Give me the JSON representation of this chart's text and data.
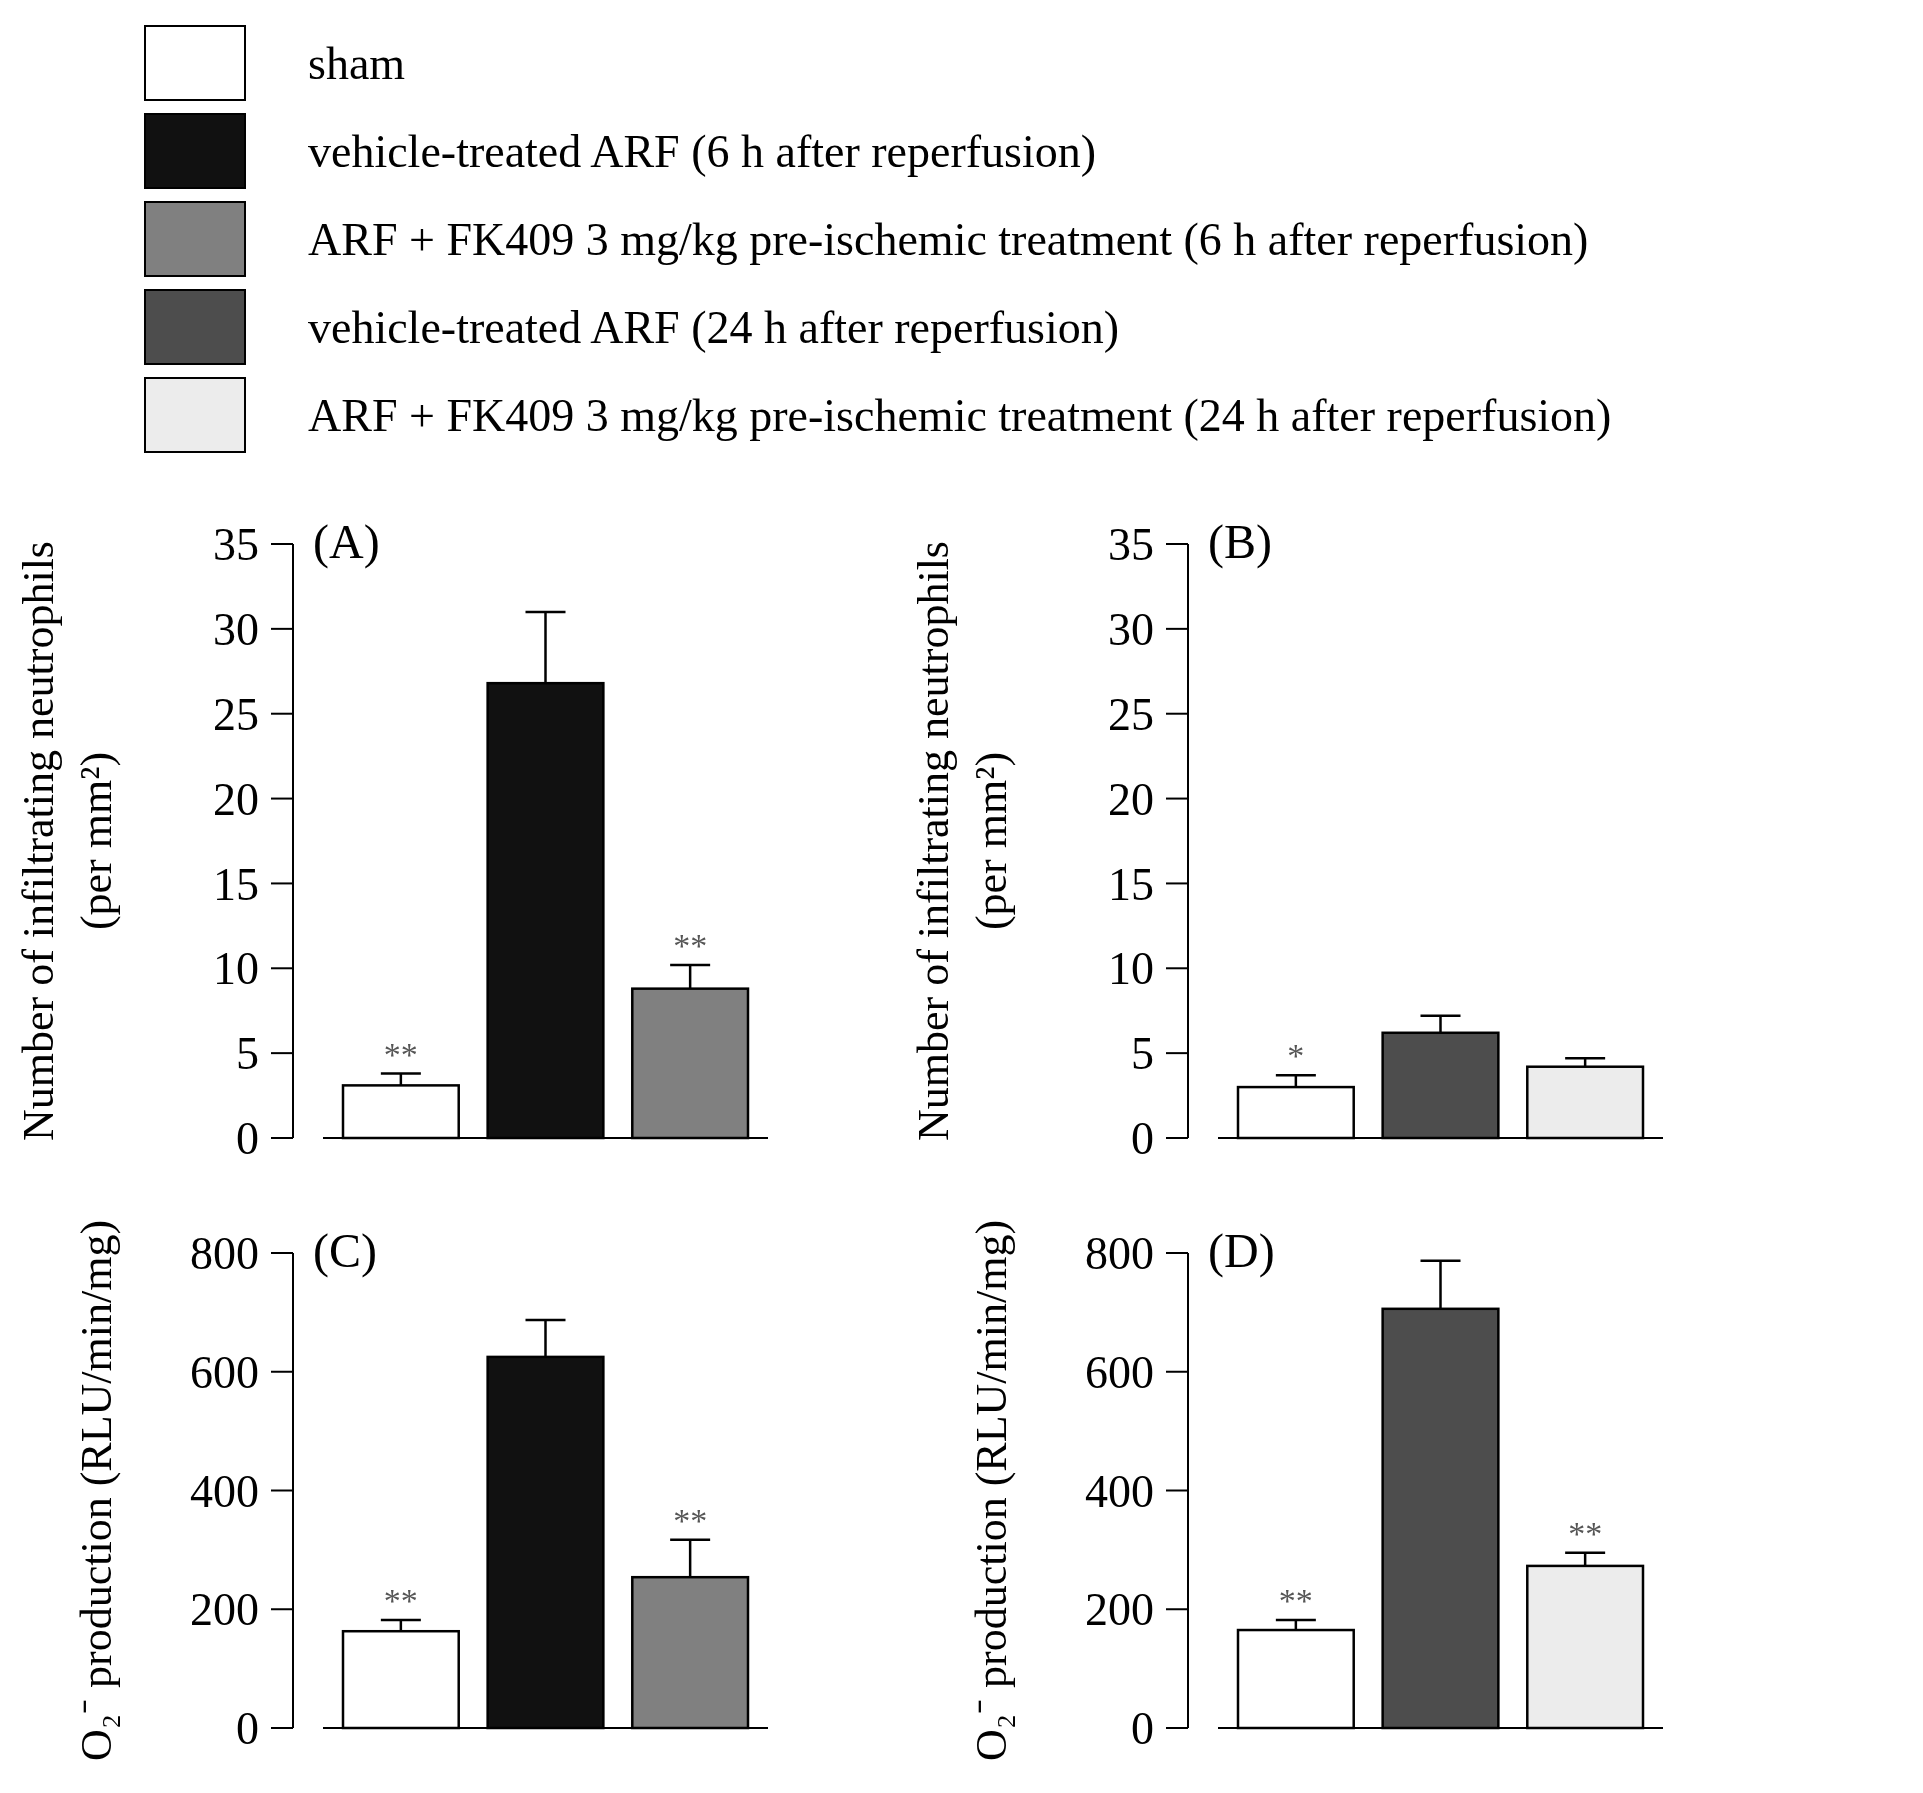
{
  "chart_data": [
    {
      "type": "bar",
      "title": "(A)",
      "ylabel": "Number of infiltrating neutrophils (per mm²)",
      "categories": [
        null
      ],
      "ylim": [
        0,
        35
      ],
      "yticks": [
        0,
        5,
        10,
        15,
        20,
        25,
        30,
        35
      ],
      "legend": "top",
      "series": [
        {
          "name": "sham",
          "color": "#ffffff",
          "values": [
            3.1
          ],
          "errors": [
            0.7
          ],
          "value_labels": [
            "**"
          ]
        },
        {
          "name": "vehicle-treated ARF (6 h after reperfusion)",
          "color": "#111111",
          "values": [
            26.8
          ],
          "errors": [
            4.2
          ]
        },
        {
          "name": "ARF + FK409 3 mg/kg pre-ischemic treatment (6 h after reperfusion)",
          "color": "#808080",
          "values": [
            8.8
          ],
          "errors": [
            1.4
          ],
          "value_labels": [
            "**"
          ]
        }
      ]
    },
    {
      "type": "bar",
      "title": "(B)",
      "ylabel": "Number of infiltrating neutrophils (per mm²)",
      "categories": [
        null
      ],
      "ylim": [
        0,
        35
      ],
      "yticks": [
        0,
        5,
        10,
        15,
        20,
        25,
        30,
        35
      ],
      "legend": "top",
      "series": [
        {
          "color": "#ffffff",
          "values": [
            3.0
          ],
          "errors": [
            0.7
          ],
          "value_labels": [
            "*"
          ]
        },
        {
          "name": "vehicle-treated ARF (24 h after reperfusion)",
          "color": "#4d4d4d",
          "values": [
            6.2
          ],
          "errors": [
            1.0
          ]
        },
        {
          "name": "ARF + FK409 3 mg/kg pre-ischemic treatment (24 h after reperfusion)",
          "color": "#ececec",
          "values": [
            4.2
          ],
          "errors": [
            0.5
          ]
        }
      ]
    },
    {
      "type": "bar",
      "title": "(C)",
      "ylabel": "O₂⁻ production (RLU/min/mg)",
      "categories": [
        null
      ],
      "ylim": [
        0,
        800
      ],
      "yticks": [
        0,
        200,
        400,
        600,
        800
      ],
      "series": [
        {
          "color": "#ffffff",
          "values": [
            163
          ],
          "errors": [
            19
          ],
          "value_labels": [
            "**"
          ]
        },
        {
          "color": "#111111",
          "values": [
            625
          ],
          "errors": [
            62
          ]
        },
        {
          "color": "#808080",
          "values": [
            254
          ],
          "errors": [
            63
          ],
          "value_labels": [
            "**"
          ]
        }
      ]
    },
    {
      "type": "bar",
      "title": "(D)",
      "ylabel": "O₂⁻ production (RLU/min/mg)",
      "categories": [
        null
      ],
      "ylim": [
        0,
        800
      ],
      "yticks": [
        0,
        200,
        400,
        600,
        800
      ],
      "series": [
        {
          "color": "#ffffff",
          "values": [
            165
          ],
          "errors": [
            17
          ],
          "value_labels": [
            "**"
          ]
        },
        {
          "color": "#4d4d4d",
          "values": [
            706
          ],
          "errors": [
            81
          ]
        },
        {
          "color": "#ececec",
          "values": [
            273
          ],
          "errors": [
            22
          ],
          "value_labels": [
            "**"
          ]
        }
      ]
    }
  ]
}
